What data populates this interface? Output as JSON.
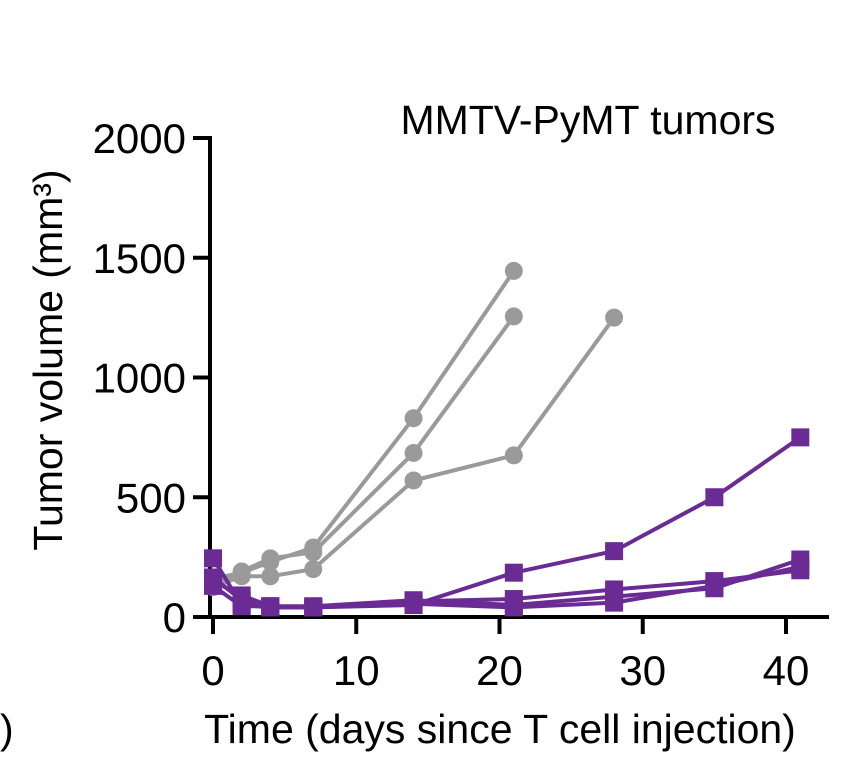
{
  "chart_data": {
    "type": "line",
    "title": "MMTV-PyMT tumors",
    "xlabel": "Time (days since T cell injection)",
    "ylabel": "Tumor volume (mm³)",
    "xlim": [
      0,
      42
    ],
    "ylim": [
      0,
      2000
    ],
    "xticks": [
      0,
      10,
      20,
      30,
      40
    ],
    "yticks": [
      0,
      500,
      1000,
      1500,
      2000
    ],
    "grid": false,
    "legend": "none",
    "panel_fragment": ")",
    "series": [
      {
        "group": "gray",
        "color": "#9a9a9a",
        "marker": "circle",
        "x": [
          0,
          2,
          4,
          7,
          14,
          21
        ],
        "y": [
          160,
          185,
          230,
          290,
          830,
          1445
        ]
      },
      {
        "group": "gray",
        "color": "#9a9a9a",
        "marker": "circle",
        "x": [
          0,
          2,
          4,
          7,
          14,
          21
        ],
        "y": [
          140,
          190,
          245,
          270,
          685,
          1255
        ]
      },
      {
        "group": "gray",
        "color": "#9a9a9a",
        "marker": "circle",
        "x": [
          0,
          2,
          4,
          7,
          14,
          21,
          28
        ],
        "y": [
          125,
          170,
          170,
          200,
          570,
          675,
          1250
        ]
      },
      {
        "group": "purple",
        "color": "#6b2b95",
        "marker": "square",
        "x": [
          0,
          2,
          4,
          7,
          14,
          21,
          28,
          35,
          41
        ],
        "y": [
          245,
          50,
          40,
          40,
          50,
          185,
          275,
          500,
          750
        ]
      },
      {
        "group": "purple",
        "color": "#6b2b95",
        "marker": "square",
        "x": [
          0,
          2,
          4,
          7,
          14,
          21,
          28,
          35,
          41
        ],
        "y": [
          150,
          90,
          45,
          40,
          65,
          75,
          115,
          150,
          195
        ]
      },
      {
        "group": "purple",
        "color": "#6b2b95",
        "marker": "square",
        "x": [
          0,
          2,
          4,
          7,
          14,
          21,
          28,
          35,
          41
        ],
        "y": [
          130,
          45,
          45,
          45,
          70,
          50,
          85,
          120,
          240
        ]
      },
      {
        "group": "purple",
        "color": "#6b2b95",
        "marker": "square",
        "x": [
          0,
          2,
          4,
          7,
          14,
          21,
          28,
          35,
          41
        ],
        "y": [
          165,
          70,
          40,
          40,
          55,
          40,
          60,
          130,
          210
        ]
      }
    ]
  }
}
